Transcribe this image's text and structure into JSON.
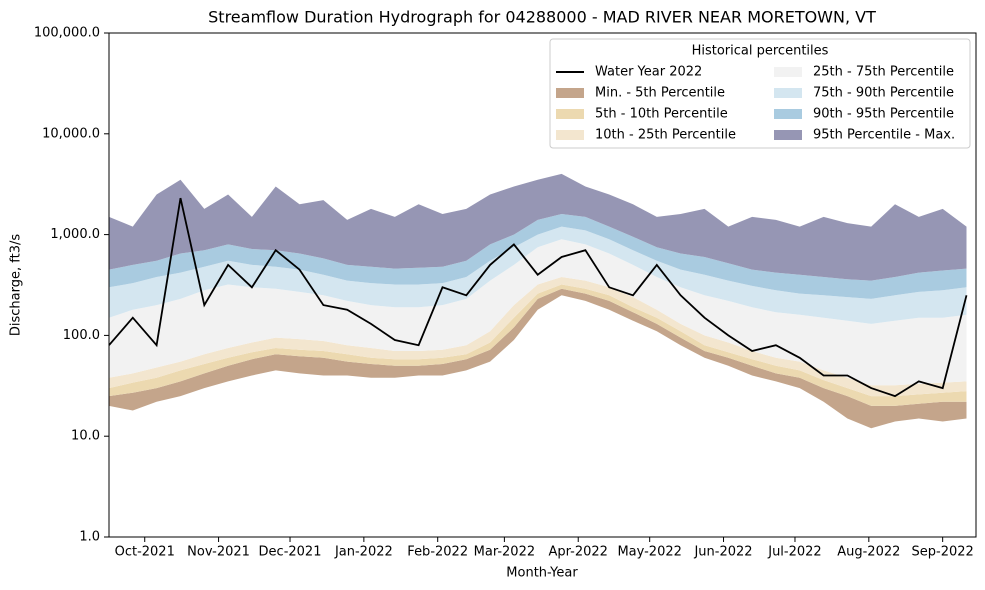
{
  "chart_data": {
    "type": "duration-hydrograph",
    "title": "Streamflow Duration Hydrograph for 04288000 - MAD RIVER NEAR MORETOWN, VT",
    "x_label": "Month-Year",
    "y_label": "Discharge, ft3/s",
    "legend_title": "Historical percentiles",
    "legend_position": "upper right",
    "yscale": "log",
    "xlim": [
      0,
      364
    ],
    "xticks": [
      {
        "value": 15,
        "label": "Oct-2021"
      },
      {
        "value": 46,
        "label": "Nov-2021"
      },
      {
        "value": 76,
        "label": "Dec-2021"
      },
      {
        "value": 107,
        "label": "Jan-2022"
      },
      {
        "value": 138,
        "label": "Feb-2022"
      },
      {
        "value": 166,
        "label": "Mar-2022"
      },
      {
        "value": 197,
        "label": "Apr-2022"
      },
      {
        "value": 227,
        "label": "May-2022"
      },
      {
        "value": 258,
        "label": "Jun-2022"
      },
      {
        "value": 288,
        "label": "Jul-2022"
      },
      {
        "value": 319,
        "label": "Aug-2022"
      },
      {
        "value": 350,
        "label": "Sep-2022"
      }
    ],
    "ylim": [
      1,
      100000
    ],
    "yticks": [
      {
        "value": 1,
        "label": "1.0"
      },
      {
        "value": 10,
        "label": "10.0"
      },
      {
        "value": 100,
        "label": "100.0"
      },
      {
        "value": 1000,
        "label": "1,000.0"
      },
      {
        "value": 10000,
        "label": "10,000.0"
      },
      {
        "value": 100000,
        "label": "100,000.0"
      }
    ],
    "x": [
      0,
      10,
      20,
      30,
      40,
      50,
      60,
      70,
      80,
      90,
      100,
      110,
      120,
      130,
      140,
      150,
      160,
      170,
      180,
      190,
      200,
      210,
      220,
      230,
      240,
      250,
      260,
      270,
      280,
      290,
      300,
      310,
      320,
      330,
      340,
      350,
      360
    ],
    "series": [
      {
        "name": "Water Year 2022",
        "color": "#000000",
        "values": [
          80,
          150,
          80,
          2300,
          200,
          500,
          300,
          700,
          450,
          200,
          180,
          130,
          90,
          80,
          300,
          250,
          500,
          800,
          400,
          600,
          700,
          300,
          250,
          500,
          250,
          150,
          100,
          70,
          80,
          60,
          40,
          40,
          30,
          25,
          35,
          30,
          250
        ]
      }
    ],
    "bands": [
      {
        "name": "Min. - 5th Percentile",
        "color": "#c4a58b",
        "lower": [
          20,
          18,
          22,
          25,
          30,
          35,
          40,
          45,
          42,
          40,
          40,
          38,
          38,
          40,
          40,
          45,
          55,
          90,
          180,
          250,
          220,
          180,
          140,
          110,
          80,
          60,
          50,
          40,
          35,
          30,
          22,
          15,
          12,
          14,
          15,
          14,
          15
        ],
        "upper": [
          25,
          27,
          30,
          35,
          42,
          50,
          58,
          65,
          62,
          60,
          55,
          52,
          50,
          50,
          52,
          58,
          72,
          120,
          230,
          290,
          260,
          220,
          170,
          130,
          95,
          70,
          60,
          50,
          42,
          38,
          30,
          25,
          20,
          20,
          21,
          22,
          22
        ]
      },
      {
        "name": "5th - 10th Percentile",
        "color": "#ecd9b0",
        "lower": [
          25,
          27,
          30,
          35,
          42,
          50,
          58,
          65,
          62,
          60,
          55,
          52,
          50,
          50,
          52,
          58,
          72,
          120,
          230,
          290,
          260,
          220,
          170,
          130,
          95,
          70,
          60,
          50,
          42,
          38,
          30,
          25,
          20,
          20,
          21,
          22,
          22
        ],
        "upper": [
          30,
          34,
          38,
          45,
          52,
          60,
          68,
          75,
          72,
          70,
          65,
          60,
          58,
          58,
          60,
          65,
          85,
          150,
          260,
          320,
          290,
          250,
          190,
          150,
          110,
          80,
          68,
          58,
          50,
          45,
          36,
          30,
          25,
          25,
          26,
          27,
          28
        ]
      },
      {
        "name": "10th - 25th Percentile",
        "color": "#f3e6cf",
        "lower": [
          30,
          34,
          38,
          45,
          52,
          60,
          68,
          75,
          72,
          70,
          65,
          60,
          58,
          58,
          60,
          65,
          85,
          150,
          260,
          320,
          290,
          250,
          190,
          150,
          110,
          80,
          68,
          58,
          50,
          45,
          36,
          30,
          25,
          25,
          26,
          27,
          28
        ],
        "upper": [
          38,
          42,
          48,
          55,
          65,
          75,
          85,
          95,
          92,
          88,
          80,
          75,
          70,
          70,
          72,
          80,
          110,
          200,
          320,
          380,
          350,
          300,
          240,
          180,
          130,
          100,
          85,
          70,
          60,
          55,
          45,
          38,
          32,
          32,
          33,
          34,
          35
        ]
      },
      {
        "name": "25th - 75th Percentile",
        "color": "#f2f2f2",
        "lower": [
          38,
          42,
          48,
          55,
          65,
          75,
          85,
          95,
          92,
          88,
          80,
          75,
          70,
          70,
          72,
          80,
          110,
          200,
          320,
          380,
          350,
          300,
          240,
          180,
          130,
          100,
          85,
          70,
          60,
          55,
          45,
          38,
          32,
          32,
          33,
          34,
          35
        ],
        "upper": [
          150,
          180,
          200,
          230,
          280,
          320,
          300,
          290,
          270,
          250,
          220,
          200,
          190,
          190,
          200,
          230,
          350,
          500,
          750,
          900,
          800,
          650,
          500,
          380,
          300,
          250,
          220,
          190,
          170,
          160,
          150,
          140,
          130,
          140,
          150,
          150,
          160
        ]
      },
      {
        "name": "75th - 90th Percentile",
        "color": "#d4e6f0",
        "lower": [
          150,
          180,
          200,
          230,
          280,
          320,
          300,
          290,
          270,
          250,
          220,
          200,
          190,
          190,
          200,
          230,
          350,
          500,
          750,
          900,
          800,
          650,
          500,
          380,
          300,
          250,
          220,
          190,
          170,
          160,
          150,
          140,
          130,
          140,
          150,
          150,
          160
        ],
        "upper": [
          300,
          330,
          380,
          420,
          480,
          550,
          500,
          480,
          450,
          400,
          350,
          330,
          320,
          320,
          330,
          380,
          550,
          750,
          1000,
          1200,
          1100,
          900,
          700,
          550,
          450,
          400,
          350,
          310,
          280,
          260,
          250,
          240,
          230,
          250,
          270,
          280,
          300
        ]
      },
      {
        "name": "90th - 95th Percentile",
        "color": "#a9cbe0",
        "lower": [
          300,
          330,
          380,
          420,
          480,
          550,
          500,
          480,
          450,
          400,
          350,
          330,
          320,
          320,
          330,
          380,
          550,
          750,
          1000,
          1200,
          1100,
          900,
          700,
          550,
          450,
          400,
          350,
          310,
          280,
          260,
          250,
          240,
          230,
          250,
          270,
          280,
          300
        ],
        "upper": [
          450,
          500,
          550,
          650,
          700,
          800,
          720,
          700,
          650,
          580,
          500,
          480,
          460,
          470,
          480,
          550,
          800,
          1000,
          1400,
          1600,
          1500,
          1200,
          950,
          750,
          650,
          600,
          520,
          450,
          420,
          400,
          380,
          360,
          350,
          380,
          420,
          440,
          460
        ]
      },
      {
        "name": "95th Percentile - Max.",
        "color": "#9696b4",
        "lower": [
          450,
          500,
          550,
          650,
          700,
          800,
          720,
          700,
          650,
          580,
          500,
          480,
          460,
          470,
          480,
          550,
          800,
          1000,
          1400,
          1600,
          1500,
          1200,
          950,
          750,
          650,
          600,
          520,
          450,
          420,
          400,
          380,
          360,
          350,
          380,
          420,
          440,
          460
        ],
        "upper": [
          1500,
          1200,
          2500,
          3500,
          1800,
          2500,
          1500,
          3000,
          2000,
          2200,
          1400,
          1800,
          1500,
          2000,
          1600,
          1800,
          2500,
          3000,
          3500,
          4000,
          3000,
          2500,
          2000,
          1500,
          1600,
          1800,
          1200,
          1500,
          1400,
          1200,
          1500,
          1300,
          1200,
          2000,
          1500,
          1800,
          1200
        ]
      }
    ]
  }
}
